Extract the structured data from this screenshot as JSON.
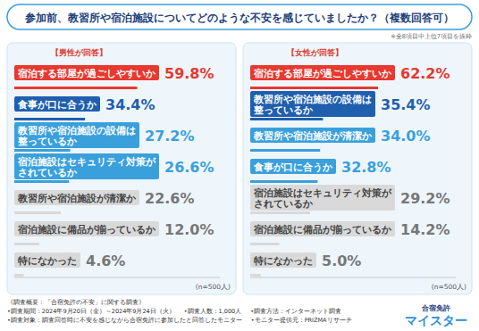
{
  "title": "参加前、教習所や宿泊施設についてどのような不安を感じていましたか？（複数回答可）",
  "note": "※全8項目中上位7項目を抜粋",
  "chart_data": [
    {
      "type": "bar",
      "orientation": "horizontal",
      "title": "【男性が回答】",
      "categories": [
        "宿泊する部屋が過ごしやすいか",
        "食事が口に合うか",
        "教習所や宿泊施設の設備は整っているか",
        "宿泊施設はセキュリティ対策がされているか",
        "教習所や宿泊施設が清潔か",
        "宿泊施設に備品が揃っているか",
        "特になかった"
      ],
      "values": [
        59.8,
        34.4,
        27.2,
        26.6,
        22.6,
        12.0,
        4.6
      ],
      "value_labels": [
        "59.8%",
        "34.4%",
        "27.2%",
        "26.6%",
        "22.6%",
        "12.0%",
        "4.6%"
      ],
      "colors": [
        "#e8382f",
        "#1f5fae",
        "#3aa0dc",
        "#3aa0dc",
        "#d9d9d9",
        "#d9d9d9",
        "#d9d9d9"
      ],
      "xlim": [
        0,
        100
      ],
      "tick_labels": false,
      "data_labels": true,
      "annotation": "(n=500人)"
    },
    {
      "type": "bar",
      "orientation": "horizontal",
      "title": "【女性が回答】",
      "categories": [
        "宿泊する部屋が過ごしやすいか",
        "教習所や宿泊施設の設備は整っているか",
        "教習所や宿泊施設が清潔か",
        "食事が口に合うか",
        "宿泊施設はセキュリティ対策がされているか",
        "宿泊施設に備品が揃っているか",
        "特になかった"
      ],
      "values": [
        62.2,
        35.4,
        34.0,
        32.8,
        29.2,
        14.2,
        5.0
      ],
      "value_labels": [
        "62.2%",
        "35.4%",
        "34.0%",
        "32.8%",
        "29.2%",
        "14.2%",
        "5.0%"
      ],
      "colors": [
        "#e8382f",
        "#1f5fae",
        "#3aa0dc",
        "#3aa0dc",
        "#d9d9d9",
        "#d9d9d9",
        "#d9d9d9"
      ],
      "xlim": [
        0,
        100
      ],
      "tick_labels": false,
      "data_labels": true,
      "annotation": "(n=500人)"
    }
  ],
  "footer": {
    "heading": "《調査概要：「合宿免許の不安」に関する調査》",
    "items": [
      "•調査期間：2024年9月20日（金）～2024年9月24日（火）",
      "•調査人数：1,000人",
      "•調査方法：インターネット調査",
      "•調査対象：調査回答時に不安を感じながら合宿免許に参加したと回答したモニター",
      "•モニター提供元：PRIZMAリサーチ"
    ]
  },
  "logo": [
    "合宿免許",
    "マイスター"
  ]
}
